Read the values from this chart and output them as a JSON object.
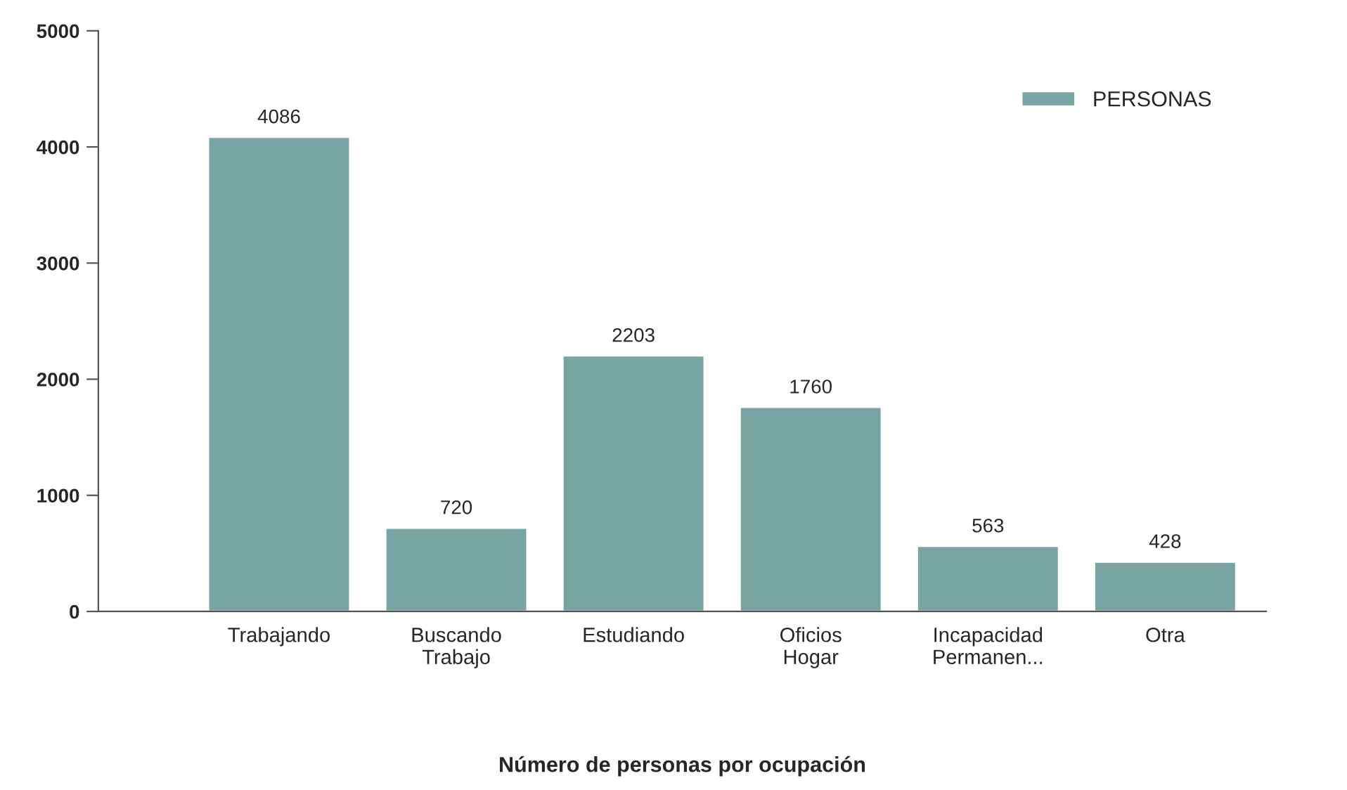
{
  "chart_data": {
    "type": "bar",
    "xlabel": "Número de personas por ocupación",
    "categories": [
      "Trabajando",
      "Buscando\nTrabajo",
      "Estudiando",
      "Oficios\nHogar",
      "Incapacidad\nPermanen...",
      "Otra"
    ],
    "series": [
      {
        "name": "PERSONAS",
        "color": "#78a5a1",
        "values": [
          4086,
          720,
          2203,
          1760,
          563,
          428
        ]
      }
    ],
    "ylim": [
      0,
      5000
    ],
    "yticks": [
      0,
      1000,
      2000,
      3000,
      4000,
      5000
    ],
    "data_labels": true,
    "legend": "top right",
    "grid": false
  }
}
